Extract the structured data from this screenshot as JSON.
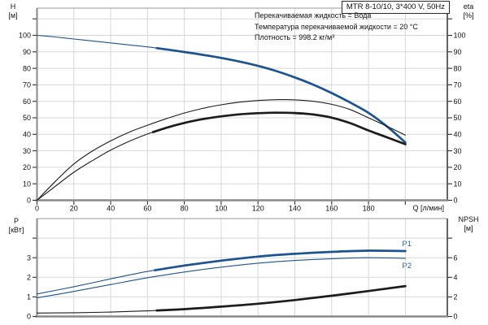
{
  "title_box": "MTR 8-10/10, 3*400 V, 50Hz",
  "info_lines": [
    "Перекачиваемая жидкость = Вода",
    "Температура перекачиваемой жидкости = 20 °C",
    "Плотность = 998.2 кг/м³"
  ],
  "colors": {
    "curve_blue": "#1d5390",
    "curve_black": "#1c1c1c",
    "label_blue": "#2563ac",
    "grid": "#d7d7d7",
    "axis_gray": "#898989",
    "axis_dark": "#3c3c3c",
    "tick": "#2e2e2e",
    "text": "#111111"
  },
  "chart_data": [
    {
      "id": "head-efficiency-chart",
      "type": "line",
      "x_axis": {
        "label": "Q [л/мин]",
        "range": [
          0,
          222.8
        ],
        "tick_values": [
          0,
          20,
          40,
          60,
          80,
          100,
          120,
          140,
          160,
          180,
          200
        ],
        "tick_labels": [
          "0",
          "20",
          "40",
          "60",
          "80",
          "100",
          "120",
          "140",
          "160",
          "180",
          ""
        ]
      },
      "left_axis": {
        "title": [
          "H",
          "[м]"
        ],
        "range": [
          0,
          116.5
        ],
        "tick_values": [
          0,
          10,
          20,
          30,
          40,
          50,
          60,
          70,
          80,
          90,
          100,
          110
        ],
        "tick_labels": [
          "0",
          "10",
          "20",
          "30",
          "40",
          "50",
          "60",
          "70",
          "80",
          "90",
          "100",
          ""
        ]
      },
      "right_axis": {
        "title": [
          "eta",
          "[%]"
        ],
        "range": [
          0,
          116.5
        ],
        "tick_values": [
          0,
          10,
          20,
          30,
          40,
          50,
          60,
          70,
          80,
          90,
          100,
          110
        ],
        "tick_labels": [
          "0",
          "10",
          "20",
          "30",
          "40",
          "50",
          "60",
          "70",
          "80",
          "90",
          "100",
          ""
        ]
      },
      "series": [
        {
          "name": "head-curve",
          "axis": "left",
          "color": "#1d5390",
          "bold_from": 65,
          "points": [
            [
              0,
              100
            ],
            [
              10,
              99
            ],
            [
              20,
              97.8
            ],
            [
              30,
              96.6
            ],
            [
              40,
              95.4
            ],
            [
              50,
              94.2
            ],
            [
              60,
              93
            ],
            [
              70,
              91.5
            ],
            [
              80,
              89.9
            ],
            [
              90,
              88.2
            ],
            [
              100,
              86.3
            ],
            [
              110,
              84.1
            ],
            [
              120,
              81.5
            ],
            [
              130,
              78.3
            ],
            [
              140,
              74.5
            ],
            [
              150,
              70.1
            ],
            [
              160,
              65
            ],
            [
              170,
              59.3
            ],
            [
              180,
              53
            ],
            [
              190,
              44.8
            ],
            [
              200,
              35
            ]
          ]
        },
        {
          "name": "eta-pump-curve",
          "axis": "right",
          "color": "#1c1c1c",
          "bold_from": null,
          "points": [
            [
              0,
              0
            ],
            [
              10,
              11.5
            ],
            [
              20,
              22
            ],
            [
              30,
              29.8
            ],
            [
              40,
              36
            ],
            [
              50,
              41.3
            ],
            [
              60,
              45.5
            ],
            [
              70,
              49.4
            ],
            [
              80,
              52.9
            ],
            [
              90,
              55.7
            ],
            [
              100,
              57.9
            ],
            [
              110,
              59.5
            ],
            [
              120,
              60.5
            ],
            [
              130,
              61
            ],
            [
              140,
              60.9
            ],
            [
              150,
              60
            ],
            [
              160,
              58.2
            ],
            [
              170,
              55
            ],
            [
              180,
              50
            ],
            [
              190,
              44.9
            ],
            [
              200,
              39.5
            ]
          ]
        },
        {
          "name": "eta-pump-motor-curve",
          "axis": "right",
          "color": "#1c1c1c",
          "bold_from": 63,
          "points": [
            [
              0,
              0
            ],
            [
              10,
              8.5
            ],
            [
              20,
              17
            ],
            [
              30,
              24
            ],
            [
              40,
              30.4
            ],
            [
              50,
              35.7
            ],
            [
              60,
              40.2
            ],
            [
              70,
              43.9
            ],
            [
              80,
              46.9
            ],
            [
              90,
              49.2
            ],
            [
              100,
              50.9
            ],
            [
              110,
              52.1
            ],
            [
              120,
              52.8
            ],
            [
              130,
              53.1
            ],
            [
              140,
              52.9
            ],
            [
              150,
              52
            ],
            [
              160,
              50.1
            ],
            [
              170,
              46.8
            ],
            [
              180,
              42.3
            ],
            [
              190,
              38.2
            ],
            [
              200,
              34
            ]
          ]
        }
      ]
    },
    {
      "id": "power-npsh-chart",
      "type": "line",
      "x_axis": {
        "label": "",
        "range": [
          0,
          222.8
        ],
        "tick_values": [
          0,
          20,
          40,
          60,
          80,
          100,
          120,
          140,
          160,
          180,
          200
        ],
        "tick_labels": []
      },
      "left_axis": {
        "title": [
          "P",
          "[кВт]"
        ],
        "range": [
          0,
          5
        ],
        "tick_values": [
          0,
          1,
          2,
          3,
          4
        ],
        "tick_labels": [
          "0",
          "1",
          "2",
          "3",
          ""
        ]
      },
      "right_axis": {
        "title": [
          "NPSH",
          "[м]"
        ],
        "range": [
          0,
          10
        ],
        "tick_values": [
          0,
          2,
          4,
          6,
          8
        ],
        "tick_labels": [
          "0",
          "2",
          "4",
          "6",
          ""
        ]
      },
      "series": [
        {
          "name": "p1-power-curve",
          "axis": "left",
          "color": "#1d5390",
          "bold_from": 64,
          "label": "P1",
          "label_color": "#2563ac",
          "points": [
            [
              0,
              1.15
            ],
            [
              20,
              1.52
            ],
            [
              40,
              1.92
            ],
            [
              60,
              2.3
            ],
            [
              80,
              2.6
            ],
            [
              100,
              2.85
            ],
            [
              120,
              3.06
            ],
            [
              140,
              3.2
            ],
            [
              160,
              3.3
            ],
            [
              180,
              3.36
            ],
            [
              200,
              3.34
            ]
          ]
        },
        {
          "name": "p2-power-curve",
          "axis": "left",
          "color": "#1d5390",
          "bold_from": null,
          "label": "P2",
          "label_color": "#2563ac",
          "points": [
            [
              0,
              0.95
            ],
            [
              20,
              1.28
            ],
            [
              40,
              1.63
            ],
            [
              60,
              1.98
            ],
            [
              80,
              2.27
            ],
            [
              100,
              2.52
            ],
            [
              120,
              2.72
            ],
            [
              140,
              2.86
            ],
            [
              160,
              2.95
            ],
            [
              180,
              3.0
            ],
            [
              200,
              2.97
            ]
          ]
        },
        {
          "name": "npsh-curve",
          "axis": "right",
          "color": "#1c1c1c",
          "bold_from": 65,
          "points": [
            [
              0,
              0.35
            ],
            [
              20,
              0.38
            ],
            [
              40,
              0.45
            ],
            [
              60,
              0.57
            ],
            [
              80,
              0.75
            ],
            [
              100,
              1.0
            ],
            [
              120,
              1.3
            ],
            [
              140,
              1.68
            ],
            [
              160,
              2.12
            ],
            [
              180,
              2.6
            ],
            [
              200,
              3.1
            ]
          ]
        }
      ]
    }
  ]
}
